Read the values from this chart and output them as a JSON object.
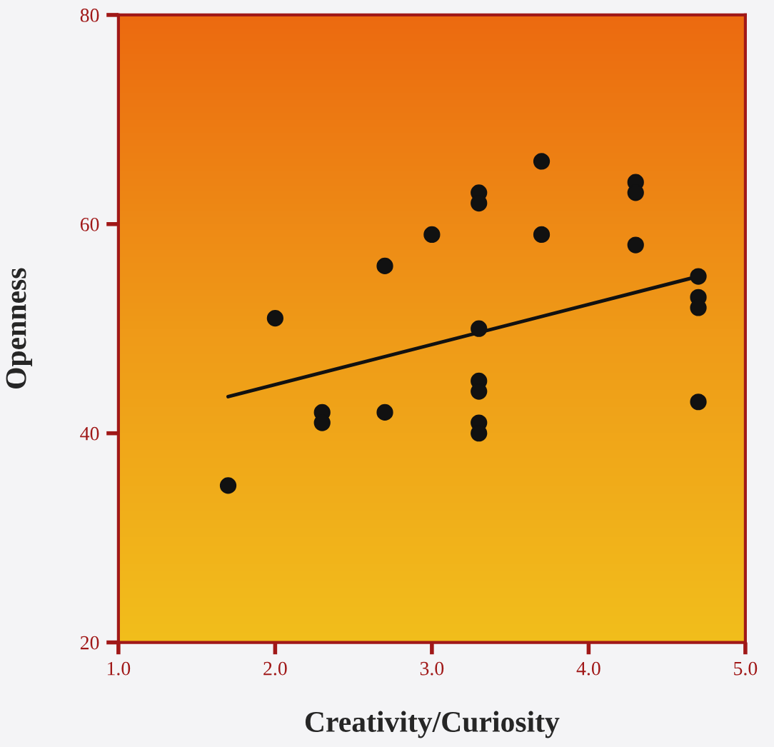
{
  "chart_data": {
    "type": "scatter",
    "xlabel": "Creativity/Curiosity",
    "ylabel": "Openness",
    "xlim": [
      1.0,
      5.0
    ],
    "ylim": [
      20,
      80
    ],
    "xticks": [
      {
        "value": 1,
        "label": "1.0"
      },
      {
        "value": 2,
        "label": "2.0"
      },
      {
        "value": 3,
        "label": "3.0"
      },
      {
        "value": 4,
        "label": "4.0"
      },
      {
        "value": 5,
        "label": "5.0"
      }
    ],
    "yticks": [
      20,
      40,
      60,
      80
    ],
    "grid": false,
    "series": [
      {
        "marker": "circle",
        "color": "#111111",
        "x": [
          1.7,
          2.0,
          2.3,
          2.3,
          2.7,
          2.7,
          3.0,
          3.3,
          3.3,
          3.3,
          3.3,
          3.3,
          3.3,
          3.3,
          3.7,
          3.7,
          4.3,
          4.3,
          4.3,
          4.7,
          4.7,
          4.7,
          4.7
        ],
        "values": [
          35,
          51,
          42,
          41,
          56,
          42,
          59,
          63,
          62,
          50,
          45,
          44,
          41,
          40,
          66,
          59,
          64,
          63,
          58,
          55,
          53,
          52,
          43
        ]
      },
      {
        "type": "line",
        "color": "#111111",
        "x": [
          1.7,
          4.7
        ],
        "values": [
          43.5,
          55
        ]
      }
    ]
  }
}
